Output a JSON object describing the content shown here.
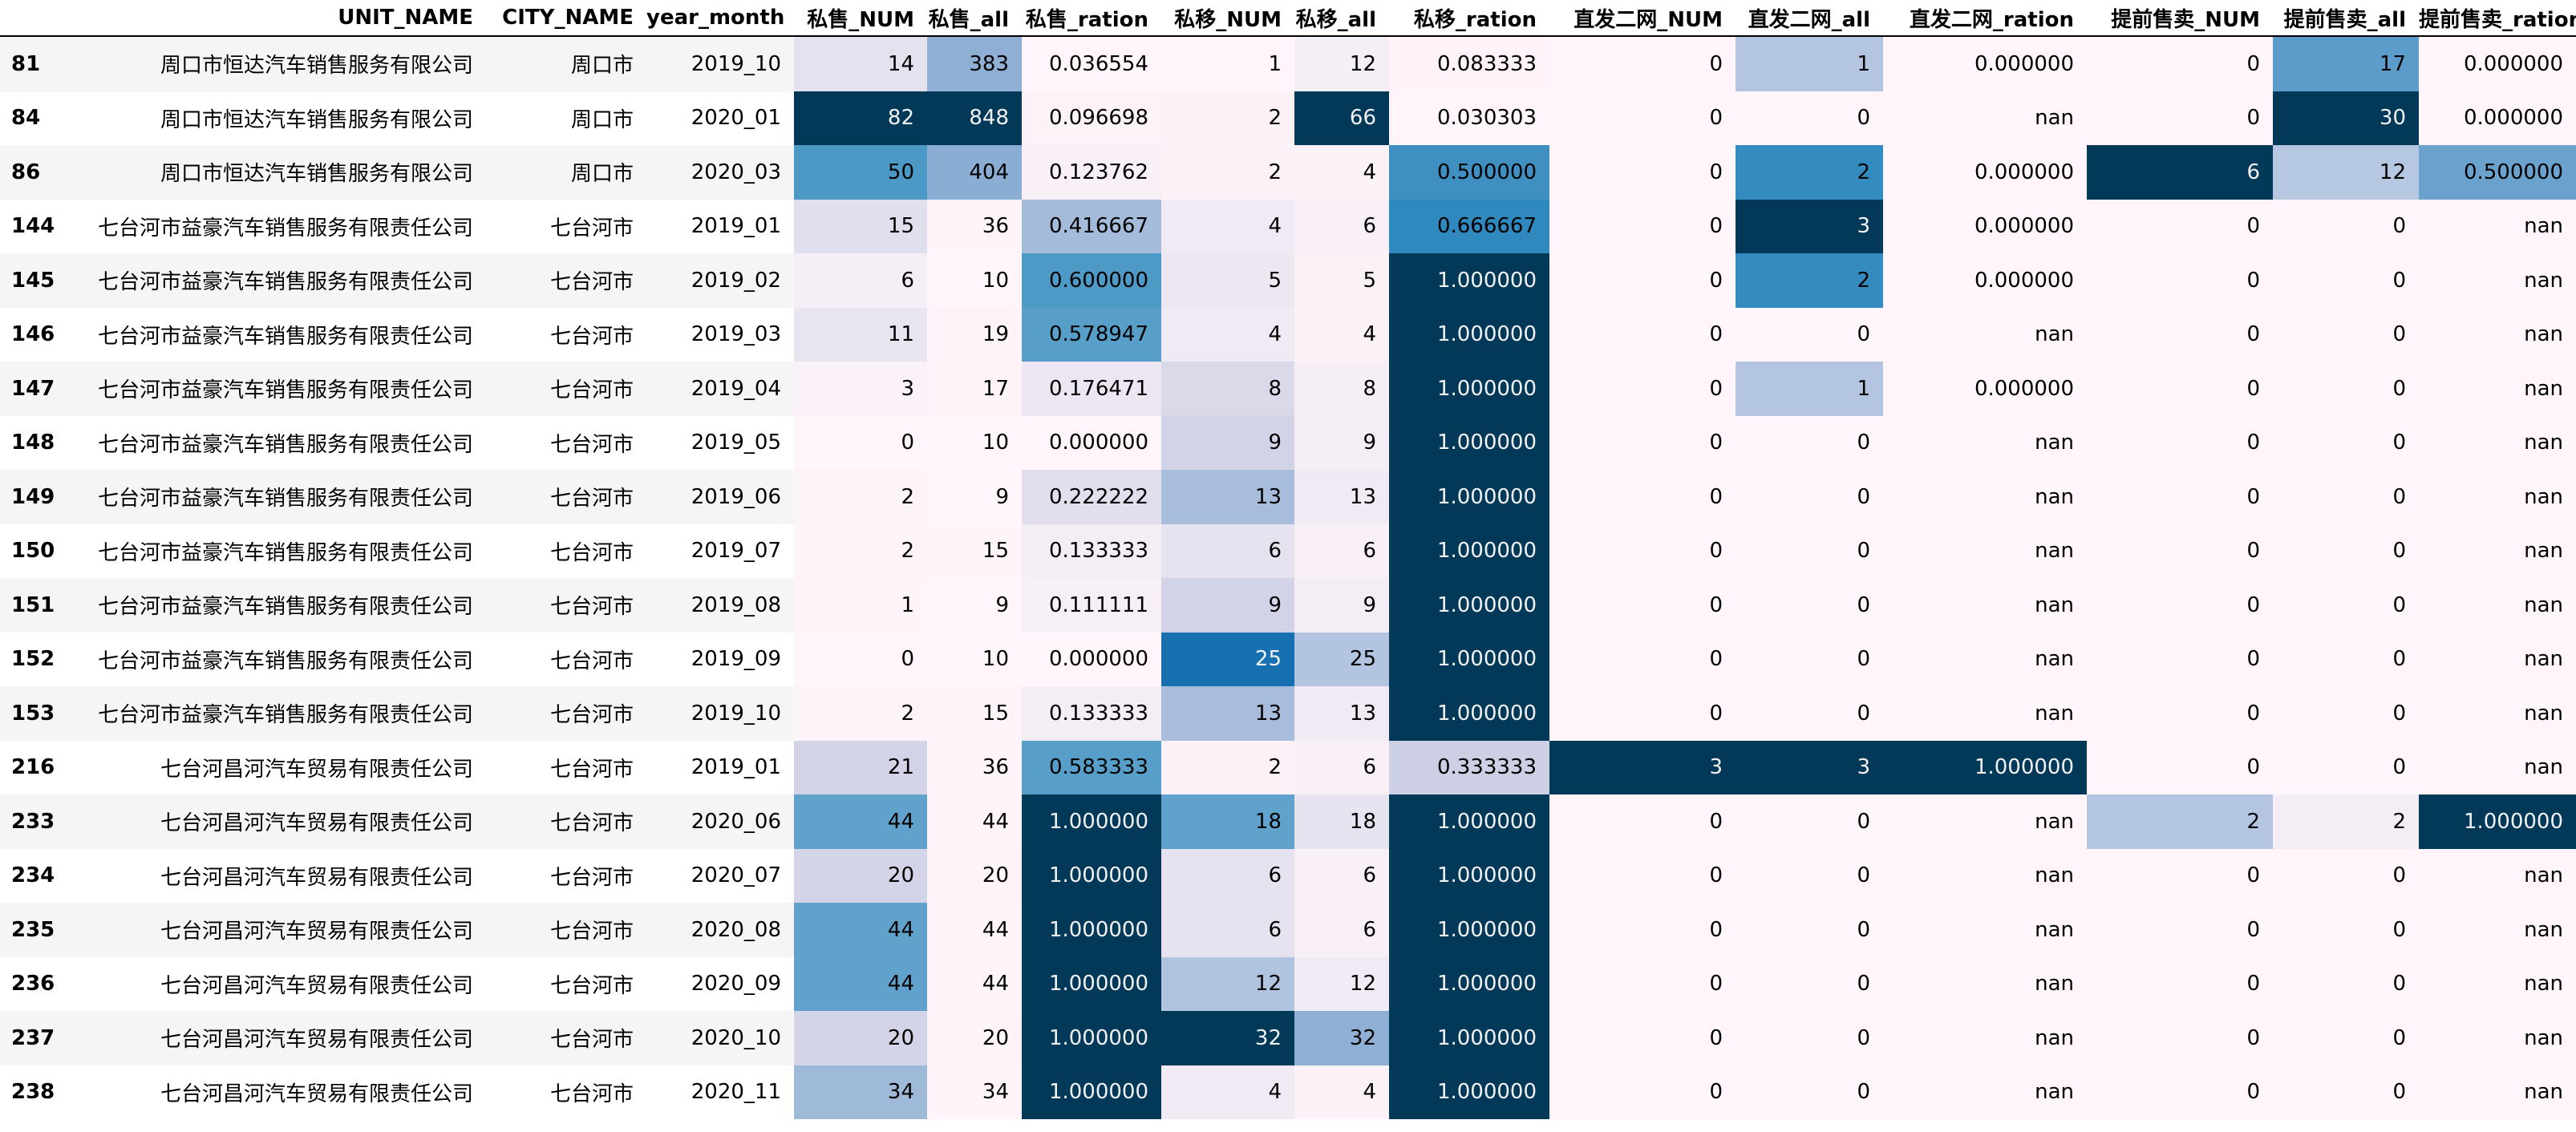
{
  "table": {
    "columns": [
      "",
      "UNIT_NAME",
      "CITY_NAME",
      "year_month",
      "私售_NUM",
      "私售_all",
      "私售_ration",
      "私移_NUM",
      "私移_all",
      "私移_ration",
      "直发二网_NUM",
      "直发二网_all",
      "直发二网_ration",
      "提前售卖_NUM",
      "提前售卖_all",
      "提前售卖_ration"
    ],
    "rows": [
      {
        "cells": [
          "81",
          "周口市恒达汽车销售服务有限公司",
          "周口市",
          "2019_10",
          "14",
          "383",
          "0.036554",
          "1",
          "12",
          "0.083333",
          "0",
          "1",
          "0.000000",
          "0",
          "17",
          "0.000000"
        ],
        "bg": [
          "",
          "",
          "",
          "",
          "#e3e2ef",
          "#8fb0d4",
          "#fff5fa",
          "#fff5fa",
          "#f4eef6",
          "#fff2f8",
          "#fff5fa",
          "#b3c5e0",
          "#fff5fa",
          "#fff5fa",
          "#5c9ccb",
          "#fff5fa"
        ]
      },
      {
        "cells": [
          "84",
          "周口市恒达汽车销售服务有限公司",
          "周口市",
          "2020_01",
          "82",
          "848",
          "0.096698",
          "2",
          "66",
          "0.030303",
          "0",
          "0",
          "nan",
          "0",
          "30",
          "0.000000"
        ],
        "bg": [
          "",
          "",
          "",
          "",
          "#023858",
          "#023858",
          "#fdf2f8",
          "#fbf1f7",
          "#023858",
          "#fff5fa",
          "#fff5fa",
          "#fff5fa",
          "#fff5fa",
          "#fff5fa",
          "#023858",
          "#fff5fa"
        ]
      },
      {
        "cells": [
          "86",
          "周口市恒达汽车销售服务有限公司",
          "周口市",
          "2020_03",
          "50",
          "404",
          "0.123762",
          "2",
          "4",
          "0.500000",
          "0",
          "2",
          "0.000000",
          "6",
          "12",
          "0.500000"
        ],
        "bg": [
          "",
          "",
          "",
          "",
          "#4c99c6",
          "#8aaed3",
          "#f8f0f6",
          "#fbf1f7",
          "#fbf2f7",
          "#3f8fc1",
          "#fff5fa",
          "#348bbf",
          "#fff5fa",
          "#023858",
          "#b5c7e1",
          "#6aa2cd"
        ]
      },
      {
        "cells": [
          "144",
          "七台河市益豪汽车销售服务有限责任公司",
          "七台河市",
          "2019_01",
          "15",
          "36",
          "0.416667",
          "4",
          "6",
          "0.666667",
          "0",
          "3",
          "0.000000",
          "0",
          "0",
          "nan"
        ],
        "bg": [
          "",
          "",
          "",
          "",
          "#e0dfee",
          "#fef4f9",
          "#a4bcda",
          "#f0eaf4",
          "#f8f0f6",
          "#2f89bf",
          "#fff5fa",
          "#023858",
          "#fff5fa",
          "#fff5fa",
          "#fff5fa",
          "#fff5fa"
        ]
      },
      {
        "cells": [
          "145",
          "七台河市益豪汽车销售服务有限责任公司",
          "七台河市",
          "2019_02",
          "6",
          "10",
          "0.600000",
          "5",
          "5",
          "1.000000",
          "0",
          "2",
          "0.000000",
          "0",
          "0",
          "nan"
        ],
        "bg": [
          "",
          "",
          "",
          "",
          "#f5eef6",
          "#fff5fa",
          "#4e9ac6",
          "#ede7f2",
          "#faf1f7",
          "#023858",
          "#fff5fa",
          "#348bbf",
          "#fff5fa",
          "#fff5fa",
          "#fff5fa",
          "#fff5fa"
        ]
      },
      {
        "cells": [
          "146",
          "七台河市益豪汽车销售服务有限责任公司",
          "七台河市",
          "2019_03",
          "11",
          "19",
          "0.578947",
          "4",
          "4",
          "1.000000",
          "0",
          "0",
          "nan",
          "0",
          "0",
          "nan"
        ],
        "bg": [
          "",
          "",
          "",
          "",
          "#e8e5f1",
          "#fdf3f9",
          "#579ec9",
          "#f0eaf4",
          "#fbf2f7",
          "#023858",
          "#fff5fa",
          "#fff5fa",
          "#fff5fa",
          "#fff5fa",
          "#fff5fa",
          "#fff5fa"
        ]
      },
      {
        "cells": [
          "147",
          "七台河市益豪汽车销售服务有限责任公司",
          "七台河市",
          "2019_04",
          "3",
          "17",
          "0.176471",
          "8",
          "8",
          "1.000000",
          "0",
          "1",
          "0.000000",
          "0",
          "0",
          "nan"
        ],
        "bg": [
          "",
          "",
          "",
          "",
          "#faf2f8",
          "#fdf3f9",
          "#ebe6f2",
          "#dad9ea",
          "#f5eef6",
          "#023858",
          "#fff5fa",
          "#b3c5e0",
          "#fff5fa",
          "#fff5fa",
          "#fff5fa",
          "#fff5fa"
        ]
      },
      {
        "cells": [
          "148",
          "七台河市益豪汽车销售服务有限责任公司",
          "七台河市",
          "2019_05",
          "0",
          "10",
          "0.000000",
          "9",
          "9",
          "1.000000",
          "0",
          "0",
          "nan",
          "0",
          "0",
          "nan"
        ],
        "bg": [
          "",
          "",
          "",
          "",
          "#fff5fa",
          "#fff5fa",
          "#fff5fa",
          "#d2d3e7",
          "#f4edf6",
          "#023858",
          "#fff5fa",
          "#fff5fa",
          "#fff5fa",
          "#fff5fa",
          "#fff5fa",
          "#fff5fa"
        ]
      },
      {
        "cells": [
          "149",
          "七台河市益豪汽车销售服务有限责任公司",
          "七台河市",
          "2019_06",
          "2",
          "9",
          "0.222222",
          "13",
          "13",
          "1.000000",
          "0",
          "0",
          "nan",
          "0",
          "0",
          "nan"
        ],
        "bg": [
          "",
          "",
          "",
          "",
          "#fcf4f9",
          "#fff5fa",
          "#e1dfed",
          "#a7bddb",
          "#f0eaf4",
          "#023858",
          "#fff5fa",
          "#fff5fa",
          "#fff5fa",
          "#fff5fa",
          "#fff5fa",
          "#fff5fa"
        ]
      },
      {
        "cells": [
          "150",
          "七台河市益豪汽车销售服务有限责任公司",
          "七台河市",
          "2019_07",
          "2",
          "15",
          "0.133333",
          "6",
          "6",
          "1.000000",
          "0",
          "0",
          "nan",
          "0",
          "0",
          "nan"
        ],
        "bg": [
          "",
          "",
          "",
          "",
          "#fcf4f9",
          "#fef4f9",
          "#f3edf5",
          "#e6e2ef",
          "#f8f0f6",
          "#023858",
          "#fff5fa",
          "#fff5fa",
          "#fff5fa",
          "#fff5fa",
          "#fff5fa",
          "#fff5fa"
        ]
      },
      {
        "cells": [
          "151",
          "七台河市益豪汽车销售服务有限责任公司",
          "七台河市",
          "2019_08",
          "1",
          "9",
          "0.111111",
          "9",
          "9",
          "1.000000",
          "0",
          "0",
          "nan",
          "0",
          "0",
          "nan"
        ],
        "bg": [
          "",
          "",
          "",
          "",
          "#fef4f9",
          "#fff5fa",
          "#f6eff7",
          "#d2d3e7",
          "#f4edf6",
          "#023858",
          "#fff5fa",
          "#fff5fa",
          "#fff5fa",
          "#fff5fa",
          "#fff5fa",
          "#fff5fa"
        ]
      },
      {
        "cells": [
          "152",
          "七台河市益豪汽车销售服务有限责任公司",
          "七台河市",
          "2019_09",
          "0",
          "10",
          "0.000000",
          "25",
          "25",
          "1.000000",
          "0",
          "0",
          "nan",
          "0",
          "0",
          "nan"
        ],
        "bg": [
          "",
          "",
          "",
          "",
          "#fff5fa",
          "#fff5fa",
          "#fff5fa",
          "#1771b0",
          "#b2c4e0",
          "#023858",
          "#fff5fa",
          "#fff5fa",
          "#fff5fa",
          "#fff5fa",
          "#fff5fa",
          "#fff5fa"
        ]
      },
      {
        "cells": [
          "153",
          "七台河市益豪汽车销售服务有限责任公司",
          "七台河市",
          "2019_10",
          "2",
          "15",
          "0.133333",
          "13",
          "13",
          "1.000000",
          "0",
          "0",
          "nan",
          "0",
          "0",
          "nan"
        ],
        "bg": [
          "",
          "",
          "",
          "",
          "#fcf4f9",
          "#fef4f9",
          "#f3edf5",
          "#a7bddb",
          "#f0eaf4",
          "#023858",
          "#fff5fa",
          "#fff5fa",
          "#fff5fa",
          "#fff5fa",
          "#fff5fa",
          "#fff5fa"
        ]
      },
      {
        "cells": [
          "216",
          "七台河昌河汽车贸易有限责任公司",
          "七台河市",
          "2019_01",
          "21",
          "36",
          "0.583333",
          "2",
          "6",
          "0.333333",
          "3",
          "3",
          "1.000000",
          "0",
          "0",
          "nan"
        ],
        "bg": [
          "",
          "",
          "",
          "",
          "#d2d3e7",
          "#fef4f9",
          "#579ec9",
          "#fbf1f7",
          "#f8f0f6",
          "#cdd0e5",
          "#023858",
          "#023858",
          "#023858",
          "#fff5fa",
          "#fff5fa",
          "#fff5fa"
        ]
      },
      {
        "cells": [
          "233",
          "七台河昌河汽车贸易有限责任公司",
          "七台河市",
          "2020_06",
          "44",
          "44",
          "1.000000",
          "18",
          "18",
          "1.000000",
          "0",
          "0",
          "nan",
          "2",
          "2",
          "1.000000"
        ],
        "bg": [
          "",
          "",
          "",
          "",
          "#60a2cc",
          "#fef4f9",
          "#023858",
          "#60a2cc",
          "#e7e3f0",
          "#023858",
          "#fff5fa",
          "#fff5fa",
          "#fff5fa",
          "#b3c5e0",
          "#f3edf5",
          "#023858"
        ]
      },
      {
        "cells": [
          "234",
          "七台河昌河汽车贸易有限责任公司",
          "七台河市",
          "2020_07",
          "20",
          "20",
          "1.000000",
          "6",
          "6",
          "1.000000",
          "0",
          "0",
          "nan",
          "0",
          "0",
          "nan"
        ],
        "bg": [
          "",
          "",
          "",
          "",
          "#d4d4e8",
          "#fdf3f9",
          "#023858",
          "#e6e2ef",
          "#f8f0f6",
          "#023858",
          "#fff5fa",
          "#fff5fa",
          "#fff5fa",
          "#fff5fa",
          "#fff5fa",
          "#fff5fa"
        ]
      },
      {
        "cells": [
          "235",
          "七台河昌河汽车贸易有限责任公司",
          "七台河市",
          "2020_08",
          "44",
          "44",
          "1.000000",
          "6",
          "6",
          "1.000000",
          "0",
          "0",
          "nan",
          "0",
          "0",
          "nan"
        ],
        "bg": [
          "",
          "",
          "",
          "",
          "#60a2cc",
          "#fef4f9",
          "#023858",
          "#e6e2ef",
          "#f8f0f6",
          "#023858",
          "#fff5fa",
          "#fff5fa",
          "#fff5fa",
          "#fff5fa",
          "#fff5fa",
          "#fff5fa"
        ]
      },
      {
        "cells": [
          "236",
          "七台河昌河汽车贸易有限责任公司",
          "七台河市",
          "2020_09",
          "44",
          "44",
          "1.000000",
          "12",
          "12",
          "1.000000",
          "0",
          "0",
          "nan",
          "0",
          "0",
          "nan"
        ],
        "bg": [
          "",
          "",
          "",
          "",
          "#60a2cc",
          "#fef4f9",
          "#023858",
          "#b0c3df",
          "#f1ebf5",
          "#023858",
          "#fff5fa",
          "#fff5fa",
          "#fff5fa",
          "#fff5fa",
          "#fff5fa",
          "#fff5fa"
        ]
      },
      {
        "cells": [
          "237",
          "七台河昌河汽车贸易有限责任公司",
          "七台河市",
          "2020_10",
          "20",
          "20",
          "1.000000",
          "32",
          "32",
          "1.000000",
          "0",
          "0",
          "nan",
          "0",
          "0",
          "nan"
        ],
        "bg": [
          "",
          "",
          "",
          "",
          "#d4d4e8",
          "#fdf3f9",
          "#023858",
          "#023858",
          "#8fb0d4",
          "#023858",
          "#fff5fa",
          "#fff5fa",
          "#fff5fa",
          "#fff5fa",
          "#fff5fa",
          "#fff5fa"
        ]
      },
      {
        "cells": [
          "238",
          "七台河昌河汽车贸易有限责任公司",
          "七台河市",
          "2020_11",
          "34",
          "34",
          "1.000000",
          "4",
          "4",
          "1.000000",
          "0",
          "0",
          "nan",
          "0",
          "0",
          "nan"
        ],
        "bg": [
          "",
          "",
          "",
          "",
          "#9fbad9",
          "#fef4f9",
          "#023858",
          "#f0eaf4",
          "#fbf2f7",
          "#023858",
          "#fff5fa",
          "#fff5fa",
          "#fff5fa",
          "#fff5fa",
          "#fff5fa",
          "#fff5fa"
        ]
      }
    ]
  }
}
